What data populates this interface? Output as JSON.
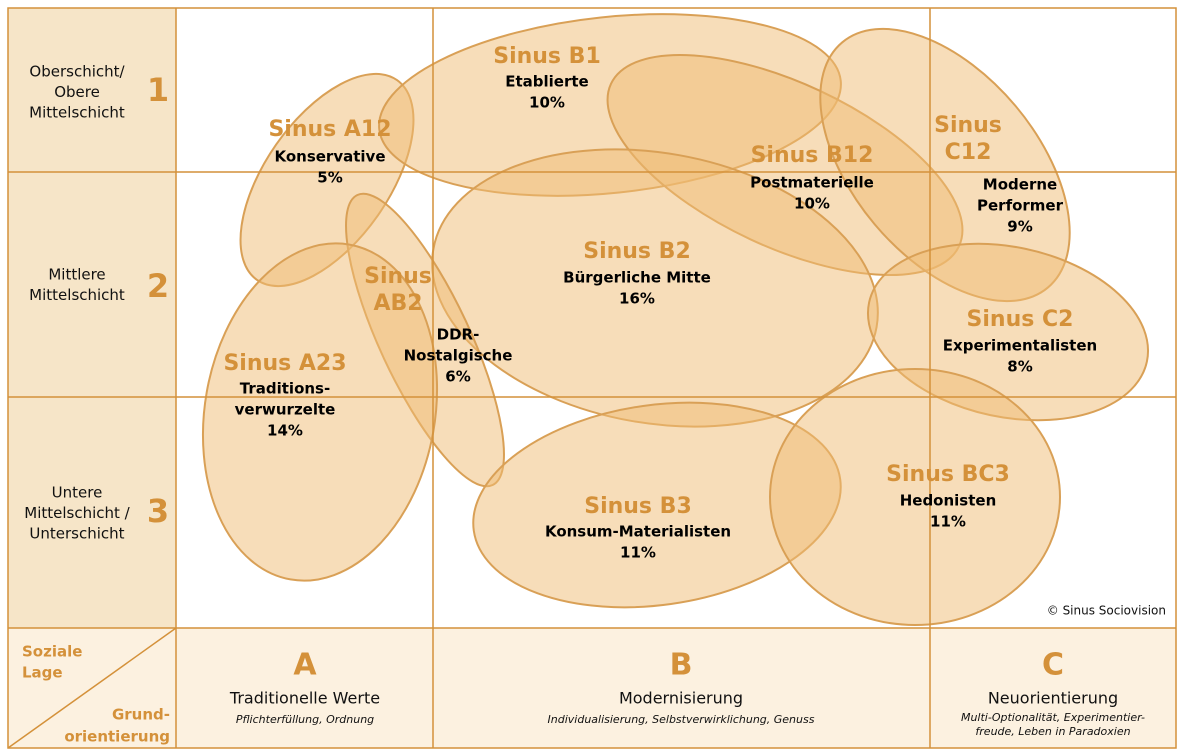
{
  "rows": [
    {
      "label": [
        "Oberschicht/",
        "Obere",
        "Mittelschicht"
      ],
      "number": "1"
    },
    {
      "label": [
        "Mittlere",
        "Mittelschicht"
      ],
      "number": "2"
    },
    {
      "label": [
        "Untere",
        "Mittelschicht /",
        "Unterschicht"
      ],
      "number": "3"
    }
  ],
  "columns": [
    {
      "letter": "A",
      "title": "Traditionelle Werte",
      "subtitle": [
        "Pflichterfüllung, Ordnung"
      ]
    },
    {
      "letter": "B",
      "title": "Modernisierung",
      "subtitle": [
        "Individualisierung, Selbstverwirklichung, Genuss"
      ]
    },
    {
      "letter": "C",
      "title": "Neuorientierung",
      "subtitle": [
        "Multi-Optionalität, Experimentier-",
        "freude, Leben in Paradoxien"
      ]
    }
  ],
  "corner": {
    "top": [
      "Soziale",
      "Lage"
    ],
    "bottom": [
      "Grund-",
      "orientierung"
    ]
  },
  "milieus": [
    {
      "name": [
        "Sinus A12"
      ],
      "description": [
        "Konservative"
      ],
      "share": "5%"
    },
    {
      "name": [
        "Sinus B1"
      ],
      "description": [
        "Etablierte"
      ],
      "share": "10%"
    },
    {
      "name": [
        "Sinus B12"
      ],
      "description": [
        "Postmaterielle"
      ],
      "share": "10%"
    },
    {
      "name": [
        "Sinus",
        "C12"
      ],
      "description": [
        "Moderne",
        "Performer"
      ],
      "share": "9%"
    },
    {
      "name": [
        "Sinus B2"
      ],
      "description": [
        "Bürgerliche Mitte"
      ],
      "share": "16%"
    },
    {
      "name": [
        "Sinus",
        "AB2"
      ],
      "description": [
        "DDR-",
        "Nostalgische"
      ],
      "share": "6%"
    },
    {
      "name": [
        "Sinus C2"
      ],
      "description": [
        "Experimentalisten"
      ],
      "share": "8%"
    },
    {
      "name": [
        "Sinus A23"
      ],
      "description": [
        "Traditions-",
        "verwurzelte"
      ],
      "share": "14%"
    },
    {
      "name": [
        "Sinus B3"
      ],
      "description": [
        "Konsum-Materialisten"
      ],
      "share": "11%"
    },
    {
      "name": [
        "Sinus BC3"
      ],
      "description": [
        "Hedonisten"
      ],
      "share": "11%"
    }
  ],
  "copyright": "© Sinus Sociovision"
}
